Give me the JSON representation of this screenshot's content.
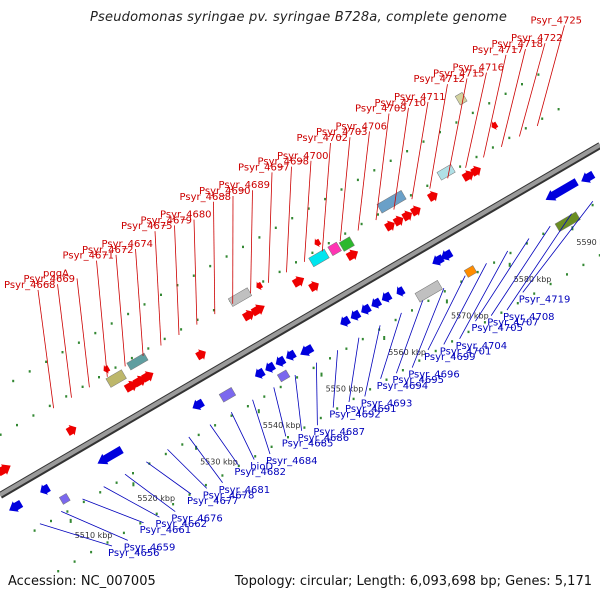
{
  "title": "Pseudomonas syringae pv. syringae B728a, complete genome",
  "footer": {
    "accession": "Accession: NC_007005",
    "summary": "Topology: circular; Length: 6,093,698 bp; Genes: 5,171"
  },
  "colors": {
    "plus_strand": "#ee0000",
    "minus_strand": "#0000dd",
    "label_plus": "#cc0000",
    "label_minus": "#0000bb",
    "axis": "#777777",
    "tick": "#338833"
  },
  "axis": {
    "ticks": [
      "5510 kbp",
      "5520 kbp",
      "5530 kbp",
      "5540 kbp",
      "5550 kbp",
      "5560 kbp",
      "5570 kbp",
      "5580 kbp",
      "5590 kbp"
    ]
  },
  "labels": {
    "top": [
      "Psyr_4668",
      "Psyr_4669",
      "pqqA",
      "Psyr_4671",
      "Psyr_4672",
      "Psyr_4674",
      "Psyr_4675",
      "Psyr_4679",
      "Psyr_4680",
      "Psyr_4688",
      "Psyr_4690",
      "Psyr_4689",
      "Psyr_4697",
      "Psyr_4698",
      "Psyr_4700",
      "Psyr_4702",
      "Psyr_4703",
      "Psyr_4706",
      "Psyr_4709",
      "Psyr_4710",
      "Psyr_4711",
      "Psyr_4712",
      "Psyr_4715",
      "Psyr_4716",
      "Psyr_4717",
      "Psyr_4718",
      "Psyr_4722",
      "Psyr_4725"
    ],
    "bottom": [
      "Psyr_4656",
      "Psyr_4659",
      "Psyr_4661",
      "Psyr_4662",
      "Psyr_4676",
      "Psyr_4677",
      "Psyr_4678",
      "Psyr_4681",
      "Psyr_4682",
      "bioD",
      "Psyr_4684",
      "Psyr_4685",
      "Psyr_4686",
      "Psyr_4687",
      "Psyr_4692",
      "Psyr_4691",
      "Psyr_4693",
      "Psyr_4694",
      "Psyr_4695",
      "Psyr_4696",
      "Psyr_4699",
      "Psyr_4701",
      "Psyr_4704",
      "Psyr_4705",
      "Psyr_4707",
      "Psyr_4708",
      "Psyr_4719"
    ]
  }
}
